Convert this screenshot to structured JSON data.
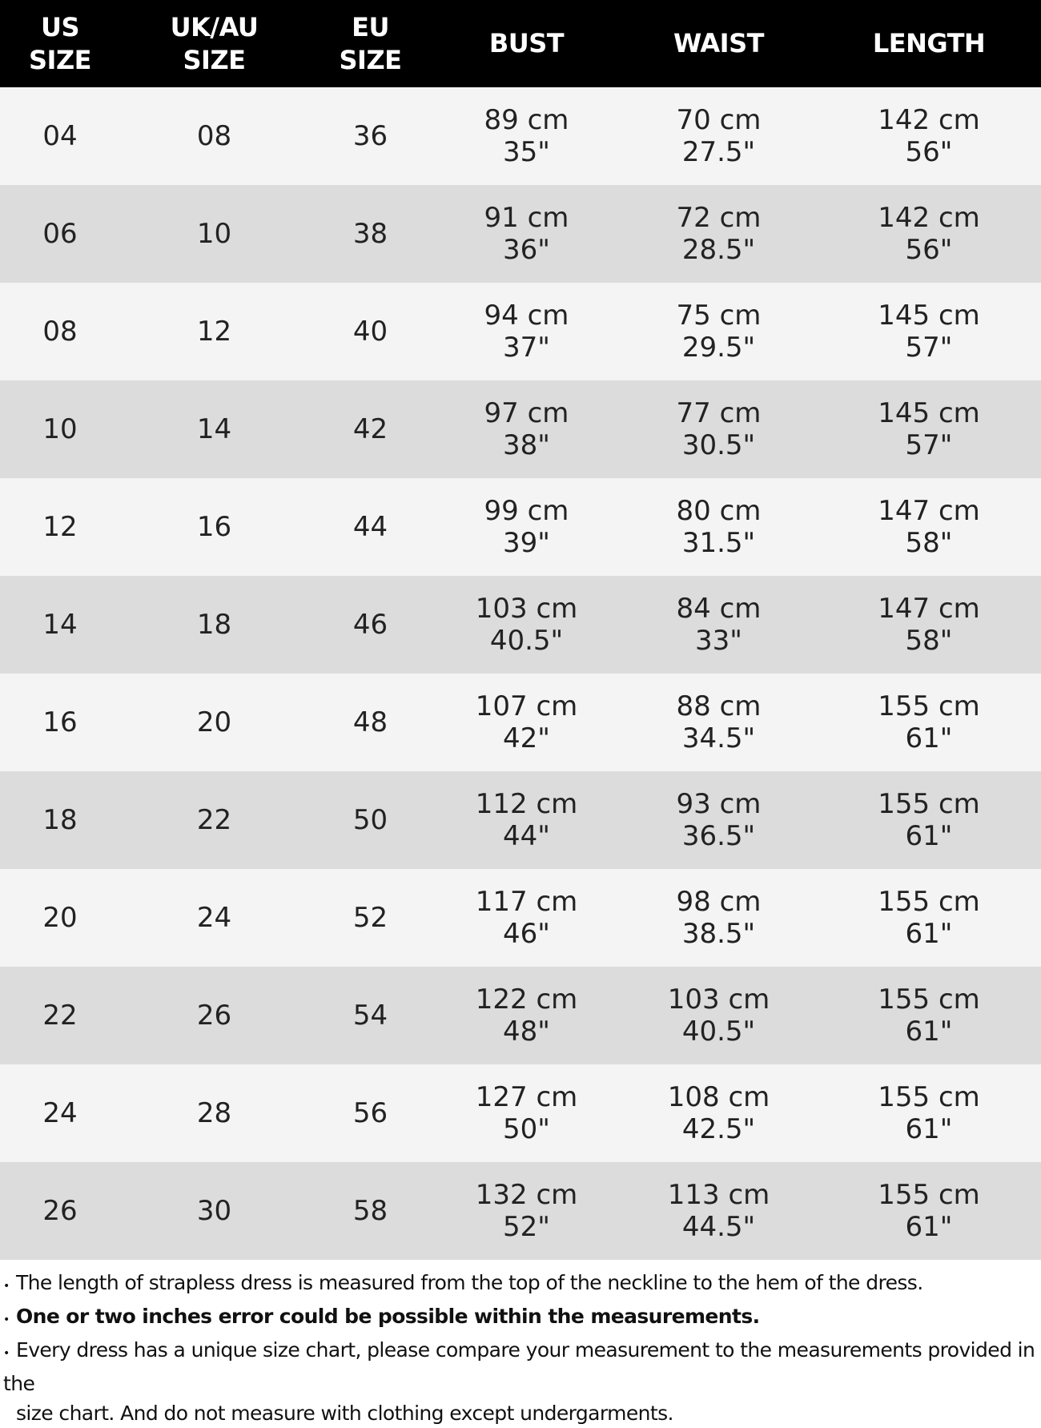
{
  "headers": [
    [
      "US",
      "SIZE"
    ],
    [
      "UK/AU",
      "SIZE"
    ],
    [
      "EU",
      "SIZE"
    ],
    [
      "BUST"
    ],
    [
      "WAIST"
    ],
    [
      "LENGTH"
    ]
  ],
  "rows": [
    [
      "04",
      "08",
      "36",
      [
        "89 cm",
        "35\""
      ],
      [
        "70 cm",
        "27.5\""
      ],
      [
        "142 cm",
        "56\""
      ]
    ],
    [
      "06",
      "10",
      "38",
      [
        "91 cm",
        "36\""
      ],
      [
        "72 cm",
        "28.5\""
      ],
      [
        "142 cm",
        "56\""
      ]
    ],
    [
      "08",
      "12",
      "40",
      [
        "94 cm",
        "37\""
      ],
      [
        "75 cm",
        "29.5\""
      ],
      [
        "145 cm",
        "57\""
      ]
    ],
    [
      "10",
      "14",
      "42",
      [
        "97 cm",
        "38\""
      ],
      [
        "77 cm",
        "30.5\""
      ],
      [
        "145 cm",
        "57\""
      ]
    ],
    [
      "12",
      "16",
      "44",
      [
        "99 cm",
        "39\""
      ],
      [
        "80 cm",
        "31.5\""
      ],
      [
        "147 cm",
        "58\""
      ]
    ],
    [
      "14",
      "18",
      "46",
      [
        "103 cm",
        "40.5\""
      ],
      [
        "84 cm",
        "33\""
      ],
      [
        "147 cm",
        "58\""
      ]
    ],
    [
      "16",
      "20",
      "48",
      [
        "107 cm",
        "42\""
      ],
      [
        "88 cm",
        "34.5\""
      ],
      [
        "155 cm",
        "61\""
      ]
    ],
    [
      "18",
      "22",
      "50",
      [
        "112 cm",
        "44\""
      ],
      [
        "93 cm",
        "36.5\""
      ],
      [
        "155 cm",
        "61\""
      ]
    ],
    [
      "20",
      "24",
      "52",
      [
        "117 cm",
        "46\""
      ],
      [
        "98 cm",
        "38.5\""
      ],
      [
        "155 cm",
        "61\""
      ]
    ],
    [
      "22",
      "26",
      "54",
      [
        "122 cm",
        "48\""
      ],
      [
        "103 cm",
        "40.5\""
      ],
      [
        "155 cm",
        "61\""
      ]
    ],
    [
      "24",
      "28",
      "56",
      [
        "127 cm",
        "50\""
      ],
      [
        "108 cm",
        "42.5\""
      ],
      [
        "155 cm",
        "61\""
      ]
    ],
    [
      "26",
      "30",
      "58",
      [
        "132 cm",
        "52\""
      ],
      [
        "113 cm",
        "44.5\""
      ],
      [
        "155 cm",
        "61\""
      ]
    ]
  ],
  "notes": [
    {
      "text": "The length of strapless dress is measured from the top of the neckline to the hem of the dress.",
      "bold": false
    },
    {
      "text": "One or two inches error could be possible within the measurements.",
      "bold": true
    },
    {
      "text": "Every dress has a unique size chart, please compare your measurement to the measurements provided in the",
      "bold": false,
      "continuation": "size chart. And do not measure with clothing except undergarments."
    }
  ],
  "colors": {
    "header_bg": "#000000",
    "row_light": "#f4f4f4",
    "row_dark": "#dcdcdc"
  }
}
